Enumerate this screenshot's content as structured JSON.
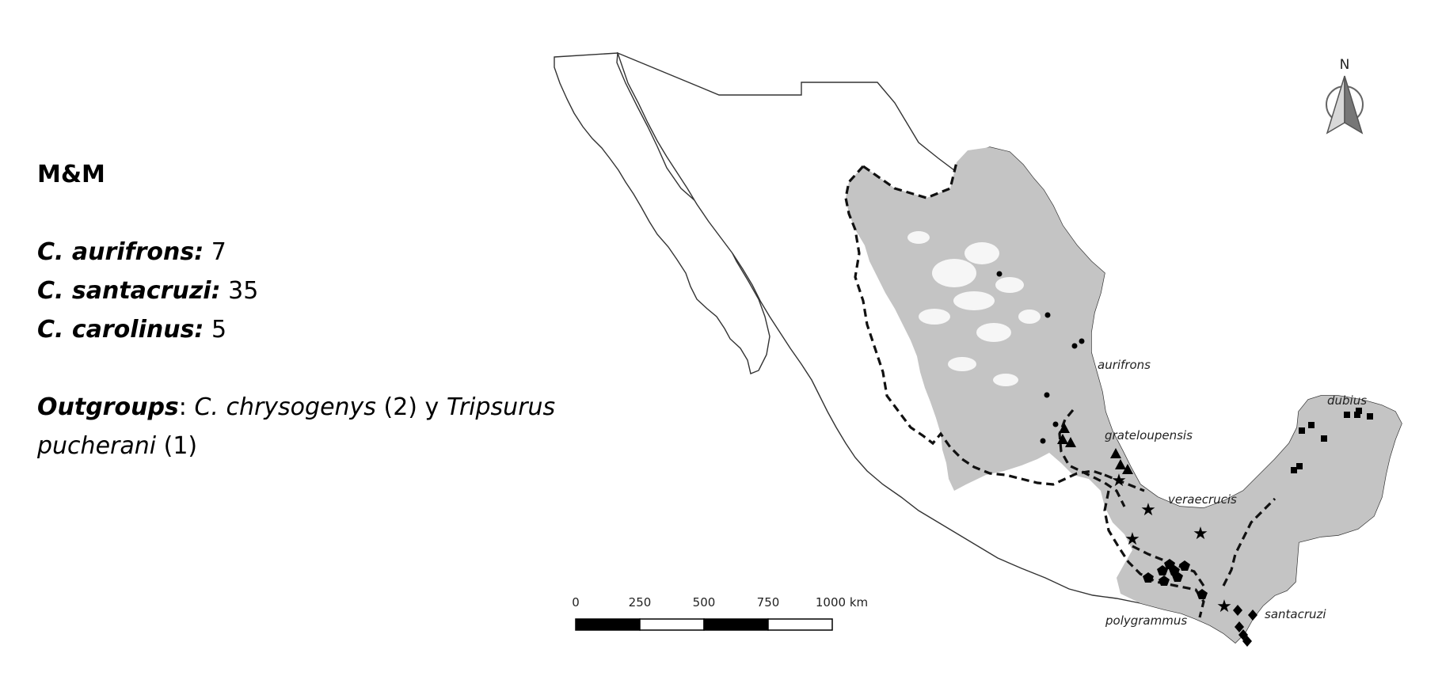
{
  "panel": {
    "title": "M&M",
    "species": [
      {
        "name": "C. aurifrons:",
        "count": "7"
      },
      {
        "name": "C. santacruzi:",
        "count": "35"
      },
      {
        "name": "C. carolinus:",
        "count": "5"
      }
    ],
    "outgroups": {
      "label": "Outgroups",
      "sep": ":",
      "sp1": "C. chrysogenys",
      "sp1_count": "(2)",
      "conj": "y",
      "sp2a": "Tripsurus",
      "sp2b": "pucherani",
      "sp2_count": "(1)"
    }
  },
  "map": {
    "north_arrow_label": "N",
    "region_labels": {
      "aurifrons": "aurifrons",
      "grateloupensis": "grateloupensis",
      "veraecrucis": "veraecrucis",
      "dubius": "dubius",
      "polygrammus": "polygrammus",
      "santacruzi": "santacruzi"
    },
    "scale_bar": {
      "ticks": [
        "0",
        "250",
        "500",
        "750",
        "1000 km"
      ]
    },
    "colors": {
      "range_fill": "#c4c4c4",
      "outline": "#000000",
      "marker": "#000000"
    }
  }
}
